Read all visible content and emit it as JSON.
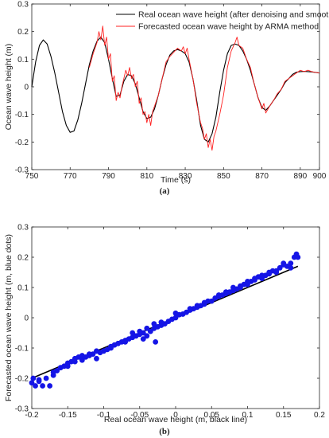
{
  "chart_data": [
    {
      "type": "line",
      "caption": "(a)",
      "xlabel": "Time (s)",
      "ylabel": "Ocean wave height (m)",
      "xlim": [
        750,
        900
      ],
      "ylim": [
        -0.3,
        0.3
      ],
      "xticks": [
        750,
        770,
        790,
        810,
        830,
        850,
        870,
        890,
        900
      ],
      "yticks": [
        -0.3,
        -0.2,
        -0.1,
        0,
        0.1,
        0.2,
        0.3
      ],
      "xtick_labels": [
        "750",
        "770",
        "790",
        "810",
        "830",
        "850",
        "870",
        "890",
        "900"
      ],
      "ytick_labels": [
        "-0.3",
        "-0.2",
        "-0.1",
        "0",
        "0.1",
        "0.2",
        "0.3"
      ],
      "legend_position": "top-right",
      "series": [
        {
          "name": "Real ocean wave height (after denoising and smooth)",
          "color": "#000000",
          "x": [
            750,
            752,
            754,
            756,
            758,
            760,
            762,
            764,
            766,
            768,
            770,
            772,
            774,
            776,
            778,
            780,
            782,
            784,
            786,
            788,
            790,
            792,
            794,
            796,
            798,
            800,
            802,
            804,
            806,
            808,
            810,
            812,
            814,
            816,
            818,
            820,
            822,
            824,
            826,
            828,
            830,
            832,
            834,
            836,
            838,
            840,
            842,
            844,
            846,
            848,
            850,
            852,
            854,
            856,
            858,
            860,
            862,
            864,
            866,
            868,
            870,
            872,
            874,
            876,
            878,
            880,
            882,
            884,
            886,
            888,
            890,
            892,
            894,
            896,
            898,
            900
          ],
          "y": [
            0.0,
            0.09,
            0.15,
            0.17,
            0.155,
            0.11,
            0.05,
            -0.02,
            -0.09,
            -0.14,
            -0.165,
            -0.16,
            -0.12,
            -0.06,
            0.01,
            0.08,
            0.13,
            0.165,
            0.18,
            0.16,
            0.1,
            0.03,
            -0.035,
            -0.03,
            0.02,
            0.045,
            0.04,
            0.01,
            -0.04,
            -0.09,
            -0.115,
            -0.11,
            -0.08,
            -0.03,
            0.03,
            0.08,
            0.115,
            0.13,
            0.135,
            0.13,
            0.12,
            0.09,
            0.03,
            -0.05,
            -0.14,
            -0.19,
            -0.2,
            -0.17,
            -0.11,
            -0.02,
            0.06,
            0.12,
            0.15,
            0.155,
            0.15,
            0.13,
            0.1,
            0.06,
            0.01,
            -0.04,
            -0.075,
            -0.085,
            -0.07,
            -0.05,
            -0.03,
            -0.01,
            0.015,
            0.03,
            0.045,
            0.053,
            0.055,
            0.056,
            0.055,
            0.054,
            0.052,
            0.05
          ]
        },
        {
          "name": "Forecasted ocean wave height by ARMA method",
          "color": "#ff2020",
          "x": [
            780,
            782,
            784,
            785,
            786,
            787,
            788,
            789,
            790,
            791,
            792,
            793,
            794,
            795,
            796,
            797,
            798,
            799,
            800,
            801,
            802,
            803,
            804,
            805,
            806,
            807,
            808,
            809,
            810,
            811,
            812,
            813,
            814,
            816,
            818,
            820,
            822,
            824,
            826,
            828,
            829,
            830,
            831,
            832,
            834,
            836,
            838,
            839,
            840,
            841,
            842,
            843,
            844,
            845,
            846,
            847,
            848,
            850,
            852,
            854,
            856,
            857,
            858,
            860,
            862,
            864,
            866,
            868,
            869,
            870,
            871,
            872,
            874,
            876,
            878,
            880,
            882,
            884,
            886,
            888,
            890,
            892,
            894,
            896,
            898,
            900
          ],
          "y": [
            0.07,
            0.12,
            0.16,
            0.2,
            0.17,
            0.22,
            0.15,
            0.18,
            0.1,
            0.12,
            0.02,
            0.04,
            -0.05,
            -0.02,
            -0.04,
            0.0,
            0.03,
            0.06,
            0.04,
            0.07,
            0.03,
            0.045,
            0.0,
            0.02,
            -0.06,
            -0.04,
            -0.1,
            -0.09,
            -0.13,
            -0.1,
            -0.14,
            -0.09,
            -0.07,
            -0.03,
            0.03,
            0.09,
            0.11,
            0.125,
            0.14,
            0.13,
            0.145,
            0.12,
            0.14,
            0.1,
            0.03,
            -0.06,
            -0.13,
            -0.15,
            -0.19,
            -0.17,
            -0.22,
            -0.19,
            -0.23,
            -0.18,
            -0.16,
            -0.13,
            -0.1,
            -0.03,
            0.07,
            0.13,
            0.16,
            0.18,
            0.15,
            0.14,
            0.1,
            0.07,
            0.01,
            -0.04,
            -0.06,
            -0.08,
            -0.06,
            -0.095,
            -0.07,
            -0.05,
            -0.025,
            -0.01,
            0.02,
            0.03,
            0.04,
            0.05,
            0.06,
            0.055,
            0.06,
            0.055,
            0.052,
            0.05
          ]
        }
      ]
    },
    {
      "type": "scatter",
      "caption": "(b)",
      "xlabel": "Real ocean wave height (m, black line)",
      "ylabel": "Forecasted ocean wave height (m, blue dots)",
      "xlim": [
        -0.2,
        0.2
      ],
      "ylim": [
        -0.3,
        0.3
      ],
      "xticks": [
        -0.2,
        -0.15,
        -0.1,
        -0.05,
        0,
        0.05,
        0.1,
        0.15,
        0.2
      ],
      "yticks": [
        -0.3,
        -0.2,
        -0.1,
        0,
        0.1,
        0.2,
        0.3
      ],
      "xtick_labels": [
        "-0.2",
        "-0.15",
        "-0.1",
        "-0.05",
        "0",
        "0.05",
        "0.1",
        "0.15",
        "0.2"
      ],
      "ytick_labels": [
        "-0.3",
        "-0.2",
        "-0.1",
        "0",
        "0.1",
        "0.2",
        "0.3"
      ],
      "line": {
        "color": "#000000",
        "x": [
          -0.2,
          0.17
        ],
        "y": [
          -0.2,
          0.17
        ]
      },
      "points_color": "#1515e6",
      "points": [
        [
          -0.2,
          -0.215
        ],
        [
          -0.198,
          -0.2
        ],
        [
          -0.195,
          -0.225
        ],
        [
          -0.19,
          -0.21
        ],
        [
          -0.185,
          -0.225
        ],
        [
          -0.18,
          -0.2
        ],
        [
          -0.175,
          -0.225
        ],
        [
          -0.17,
          -0.19
        ],
        [
          -0.165,
          -0.175
        ],
        [
          -0.16,
          -0.165
        ],
        [
          -0.155,
          -0.16
        ],
        [
          -0.15,
          -0.15
        ],
        [
          -0.145,
          -0.145
        ],
        [
          -0.14,
          -0.145
        ],
        [
          -0.135,
          -0.13
        ],
        [
          -0.13,
          -0.14
        ],
        [
          -0.125,
          -0.13
        ],
        [
          -0.12,
          -0.125
        ],
        [
          -0.115,
          -0.12
        ],
        [
          -0.11,
          -0.135
        ],
        [
          -0.105,
          -0.115
        ],
        [
          -0.1,
          -0.11
        ],
        [
          -0.095,
          -0.105
        ],
        [
          -0.09,
          -0.1
        ],
        [
          -0.085,
          -0.09
        ],
        [
          -0.08,
          -0.085
        ],
        [
          -0.075,
          -0.08
        ],
        [
          -0.07,
          -0.075
        ],
        [
          -0.065,
          -0.07
        ],
        [
          -0.06,
          -0.065
        ],
        [
          -0.055,
          -0.06
        ],
        [
          -0.05,
          -0.055
        ],
        [
          -0.045,
          -0.05
        ],
        [
          -0.04,
          -0.06
        ],
        [
          -0.035,
          -0.045
        ],
        [
          -0.03,
          -0.035
        ],
        [
          -0.028,
          -0.08
        ],
        [
          -0.025,
          -0.03
        ],
        [
          -0.02,
          -0.025
        ],
        [
          -0.015,
          -0.02
        ],
        [
          -0.01,
          -0.012
        ],
        [
          -0.005,
          -0.005
        ],
        [
          0,
          0.0
        ],
        [
          0.005,
          0.01
        ],
        [
          0.01,
          0.012
        ],
        [
          0.015,
          0.018
        ],
        [
          0.02,
          0.025
        ],
        [
          0.025,
          0.03
        ],
        [
          0.03,
          0.04
        ],
        [
          0.035,
          0.04
        ],
        [
          0.04,
          0.045
        ],
        [
          0.045,
          0.055
        ],
        [
          0.05,
          0.055
        ],
        [
          0.055,
          0.065
        ],
        [
          0.06,
          0.07
        ],
        [
          0.065,
          0.075
        ],
        [
          0.07,
          0.085
        ],
        [
          0.075,
          0.085
        ],
        [
          0.08,
          0.1
        ],
        [
          0.085,
          0.095
        ],
        [
          0.09,
          0.105
        ],
        [
          0.095,
          0.11
        ],
        [
          0.1,
          0.12
        ],
        [
          0.105,
          0.12
        ],
        [
          0.11,
          0.125
        ],
        [
          0.115,
          0.135
        ],
        [
          0.12,
          0.14
        ],
        [
          0.125,
          0.14
        ],
        [
          0.13,
          0.15
        ],
        [
          0.135,
          0.155
        ],
        [
          0.14,
          0.15
        ],
        [
          0.145,
          0.165
        ],
        [
          0.15,
          0.175
        ],
        [
          0.155,
          0.17
        ],
        [
          0.16,
          0.18
        ],
        [
          0.165,
          0.2
        ],
        [
          0.168,
          0.21
        ],
        [
          0.17,
          0.2
        ],
        [
          -0.19,
          -0.205
        ],
        [
          -0.17,
          -0.18
        ],
        [
          -0.15,
          -0.16
        ],
        [
          -0.13,
          -0.125
        ],
        [
          -0.11,
          -0.11
        ],
        [
          -0.09,
          -0.095
        ],
        [
          -0.07,
          -0.08
        ],
        [
          -0.05,
          -0.045
        ],
        [
          -0.04,
          -0.035
        ],
        [
          -0.02,
          -0.015
        ],
        [
          0.0,
          0.015
        ],
        [
          0.02,
          0.03
        ],
        [
          0.04,
          0.05
        ],
        [
          0.06,
          0.075
        ],
        [
          0.08,
          0.09
        ],
        [
          0.1,
          0.11
        ],
        [
          0.12,
          0.13
        ],
        [
          0.14,
          0.155
        ],
        [
          0.16,
          0.165
        ],
        [
          0.15,
          0.18
        ],
        [
          -0.06,
          -0.05
        ],
        [
          -0.045,
          -0.07
        ],
        [
          0.03,
          0.035
        ],
        [
          0.07,
          0.08
        ],
        [
          0.11,
          0.13
        ],
        [
          -0.12,
          -0.12
        ],
        [
          -0.14,
          -0.135
        ],
        [
          0.09,
          0.1
        ],
        [
          0.13,
          0.145
        ],
        [
          -0.03,
          -0.02
        ]
      ]
    }
  ]
}
